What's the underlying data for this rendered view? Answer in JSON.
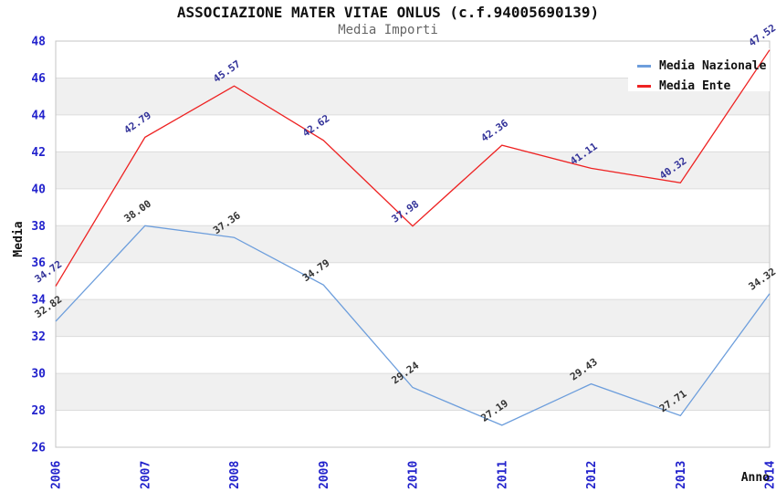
{
  "title": "ASSOCIAZIONE MATER VITAE ONLUS (c.f.94005690139)",
  "subtitle": "Media Importi",
  "chart_data": {
    "type": "line",
    "categories": [
      "2006",
      "2007",
      "2008",
      "2009",
      "2010",
      "2011",
      "2012",
      "2013",
      "2014"
    ],
    "series": [
      {
        "name": "Media Nazionale",
        "color": "#6D9EDC",
        "label_color": "#333333",
        "values": [
          32.82,
          38.0,
          37.36,
          34.79,
          29.24,
          27.19,
          29.43,
          27.71,
          34.32
        ]
      },
      {
        "name": "Media Ente",
        "color": "#EE2222",
        "label_color": "#333399",
        "values": [
          34.72,
          42.79,
          45.57,
          42.62,
          37.98,
          42.36,
          41.11,
          40.32,
          47.52
        ]
      }
    ],
    "xlabel": "Anno",
    "ylabel": "Media",
    "ylim": [
      26,
      48
    ],
    "ytick_step": 2,
    "yticks": [
      26,
      28,
      30,
      32,
      34,
      36,
      38,
      40,
      42,
      44,
      46,
      48
    ],
    "grid": "horizontal-bands",
    "legend_position": "top-right",
    "value_label_decimals": 2,
    "colors": {
      "band": "#f0f0f0",
      "grid_line": "#dcdcdc",
      "plot_border": "#c4c4c4",
      "tick_text": "#2222cc",
      "title_text": "#111111",
      "subtitle_text": "#666666",
      "legend_background": "#ffffff"
    }
  }
}
